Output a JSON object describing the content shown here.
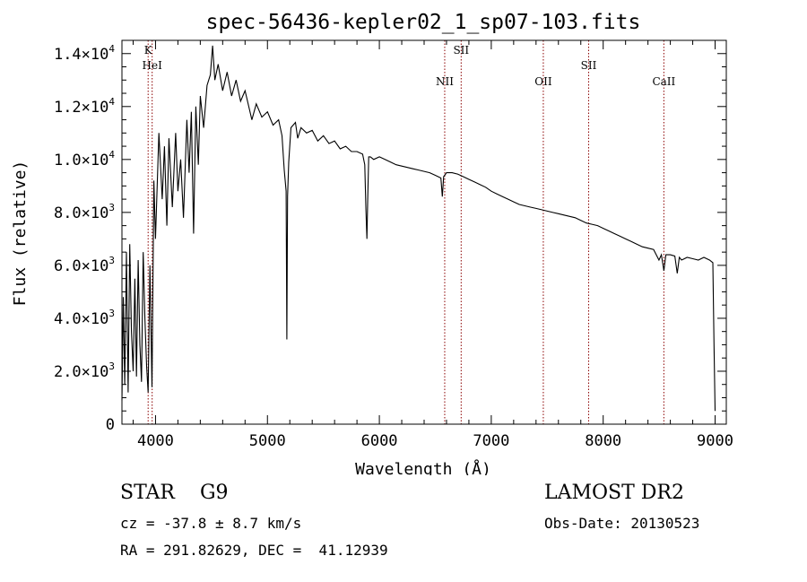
{
  "chart_data": {
    "type": "line",
    "title": "spec-56436-kepler02_1_sp07-103.fits",
    "xlabel": "Wavelength (Å)",
    "ylabel": "Flux (relative)",
    "xlim": [
      3700,
      9100
    ],
    "ylim": [
      0,
      14500
    ],
    "x_ticks": [
      4000,
      5000,
      6000,
      7000,
      8000,
      9000
    ],
    "x_tick_labels": [
      "4000",
      "5000",
      "6000",
      "7000",
      "8000",
      "9000"
    ],
    "y_ticks": [
      {
        "value": 0,
        "mantissa": "0",
        "exp": ""
      },
      {
        "value": 2000,
        "mantissa": "2.0×10",
        "exp": "3"
      },
      {
        "value": 4000,
        "mantissa": "4.0×10",
        "exp": "3"
      },
      {
        "value": 6000,
        "mantissa": "6.0×10",
        "exp": "3"
      },
      {
        "value": 8000,
        "mantissa": "8.0×10",
        "exp": "3"
      },
      {
        "value": 10000,
        "mantissa": "1.0×10",
        "exp": "4"
      },
      {
        "value": 12000,
        "mantissa": "1.2×10",
        "exp": "4"
      },
      {
        "value": 14000,
        "mantissa": "1.4×10",
        "exp": "4"
      }
    ],
    "line_color": "#000000",
    "marker_color": "#8b0000",
    "grid": false,
    "spectral_lines": [
      {
        "label": "K",
        "wavelength": 3934,
        "label_row": 0
      },
      {
        "label": "HeI",
        "wavelength": 3970,
        "label_row": 1
      },
      {
        "label": "NII",
        "wavelength": 6584,
        "label_row": 2
      },
      {
        "label": "SII",
        "wavelength": 6731,
        "label_row": 0
      },
      {
        "label": "OII",
        "wavelength": 7465,
        "label_row": 2
      },
      {
        "label": "SII",
        "wavelength": 7870,
        "label_row": 1
      },
      {
        "label": "CaII",
        "wavelength": 8542,
        "label_row": 2
      }
    ],
    "series": [
      {
        "x": [
          3700,
          3712,
          3725,
          3740,
          3755,
          3770,
          3785,
          3800,
          3815,
          3830,
          3845,
          3860,
          3875,
          3890,
          3905,
          3920,
          3934,
          3950,
          3968,
          3985,
          4000,
          4030,
          4060,
          4080,
          4101,
          4120,
          4150,
          4180,
          4200,
          4225,
          4250,
          4280,
          4300,
          4320,
          4340,
          4360,
          4383,
          4400,
          4430,
          4460,
          4490,
          4510,
          4530,
          4560,
          4600,
          4640,
          4680,
          4720,
          4760,
          4800,
          4861,
          4900,
          4950,
          5000,
          5050,
          5100,
          5130,
          5150,
          5167,
          5173,
          5180,
          5190,
          5210,
          5250,
          5270,
          5300,
          5350,
          5400,
          5450,
          5500,
          5550,
          5600,
          5650,
          5700,
          5750,
          5800,
          5850,
          5870,
          5880,
          5889,
          5896,
          5905,
          5920,
          5950,
          6000,
          6050,
          6100,
          6150,
          6200,
          6250,
          6300,
          6350,
          6400,
          6450,
          6500,
          6550,
          6563,
          6575,
          6600,
          6650,
          6700,
          6750,
          6800,
          6850,
          6900,
          6950,
          7000,
          7050,
          7100,
          7150,
          7200,
          7250,
          7300,
          7350,
          7400,
          7450,
          7500,
          7550,
          7600,
          7650,
          7700,
          7750,
          7800,
          7850,
          7900,
          7950,
          8000,
          8050,
          8100,
          8150,
          8200,
          8250,
          8300,
          8350,
          8400,
          8450,
          8498,
          8520,
          8542,
          8560,
          8600,
          8640,
          8662,
          8680,
          8700,
          8750,
          8800,
          8850,
          8900,
          8950,
          8980,
          8990,
          9000
        ],
        "y": [
          900,
          4800,
          1500,
          6500,
          1200,
          6800,
          3500,
          2000,
          5500,
          1800,
          6200,
          3000,
          1600,
          6500,
          4000,
          2200,
          1200,
          6000,
          1400,
          9200,
          7000,
          11000,
          8500,
          10500,
          7500,
          10800,
          8200,
          11000,
          8800,
          10000,
          7800,
          11500,
          9500,
          11800,
          7200,
          12000,
          9800,
          12400,
          11200,
          12800,
          13200,
          14300,
          13000,
          13600,
          12600,
          13300,
          12400,
          13000,
          12200,
          12600,
          11500,
          12100,
          11600,
          11800,
          11300,
          11500,
          10900,
          9600,
          8800,
          3200,
          8600,
          9900,
          11200,
          11400,
          10800,
          11200,
          11000,
          11100,
          10700,
          10900,
          10600,
          10700,
          10400,
          10500,
          10300,
          10300,
          10200,
          9800,
          8100,
          7000,
          8500,
          10100,
          10100,
          10000,
          10100,
          10000,
          9900,
          9800,
          9750,
          9700,
          9650,
          9600,
          9550,
          9500,
          9400,
          9300,
          8600,
          9350,
          9500,
          9500,
          9450,
          9350,
          9250,
          9150,
          9050,
          8950,
          8800,
          8700,
          8600,
          8500,
          8400,
          8300,
          8250,
          8200,
          8150,
          8100,
          8050,
          8000,
          7950,
          7900,
          7850,
          7800,
          7700,
          7600,
          7550,
          7500,
          7400,
          7300,
          7200,
          7100,
          7000,
          6900,
          6800,
          6700,
          6650,
          6600,
          6200,
          6400,
          5800,
          6400,
          6400,
          6350,
          5700,
          6300,
          6200,
          6300,
          6250,
          6200,
          6300,
          6200,
          6100,
          3000,
          500
        ]
      }
    ]
  },
  "footer": {
    "star_class": "STAR    G9",
    "survey": "LAMOST DR2",
    "velocity": "cz = -37.8 ± 8.7 km/s",
    "obs_date": "Obs-Date: 20130523",
    "coords": "RA = 291.82629, DEC =  41.12939"
  }
}
